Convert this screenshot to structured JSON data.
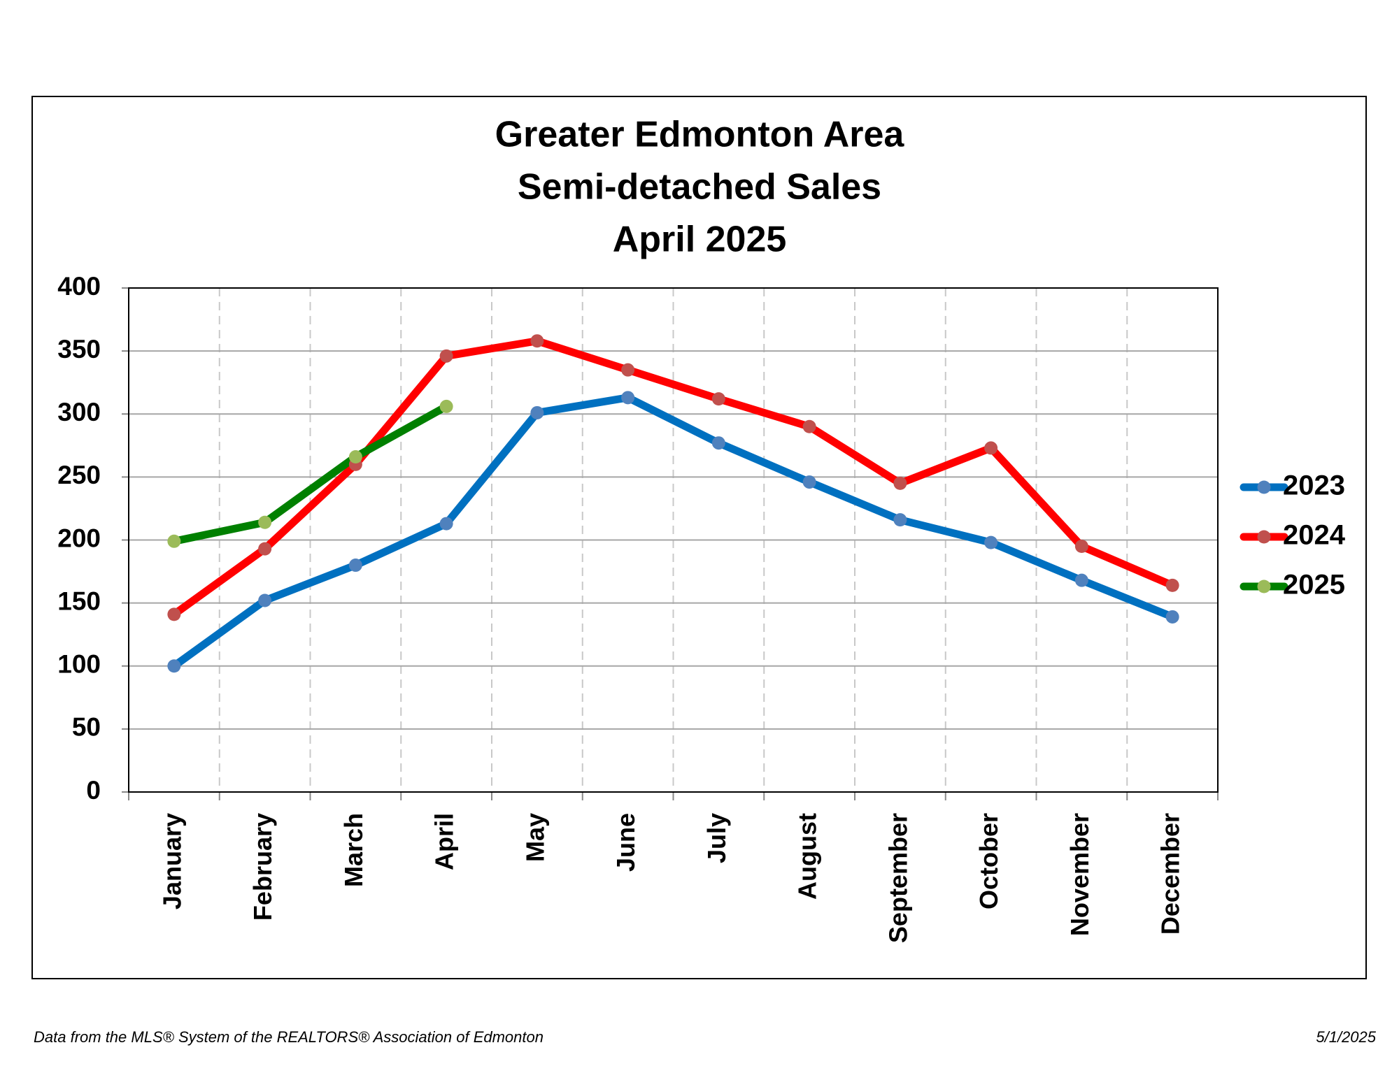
{
  "chart_data": {
    "type": "line",
    "title_lines": [
      "Greater Edmonton Area",
      "Semi-detached Sales",
      "April 2025"
    ],
    "categories": [
      "January",
      "February",
      "March",
      "April",
      "May",
      "June",
      "July",
      "August",
      "September",
      "October",
      "November",
      "December"
    ],
    "series": [
      {
        "name": "2023",
        "color": "#0070c0",
        "marker_color": "#4f81bd",
        "values": [
          100,
          152,
          180,
          213,
          301,
          313,
          277,
          246,
          216,
          198,
          168,
          139
        ]
      },
      {
        "name": "2024",
        "color": "#ff0000",
        "marker_color": "#c0504d",
        "values": [
          141,
          193,
          260,
          346,
          358,
          335,
          312,
          290,
          245,
          273,
          195,
          164
        ]
      },
      {
        "name": "2025",
        "color": "#008000",
        "marker_color": "#9bbb59",
        "values": [
          199,
          214,
          266,
          306,
          null,
          null,
          null,
          null,
          null,
          null,
          null,
          null
        ]
      }
    ],
    "ylim": [
      0,
      400
    ],
    "yticks": [
      0,
      50,
      100,
      150,
      200,
      250,
      300,
      350,
      400
    ],
    "grid": true,
    "legend": "right",
    "source": "Data from the MLS® System of the REALTORS® Association of Edmonton",
    "date": "5/1/2025"
  }
}
